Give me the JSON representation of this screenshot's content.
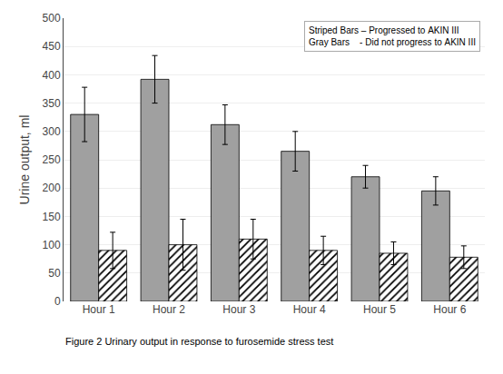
{
  "chart_data": {
    "type": "bar",
    "ylabel": "Urine output, ml",
    "categories": [
      "Hour 1",
      "Hour 2",
      "Hour 3",
      "Hour 4",
      "Hour 5",
      "Hour 6"
    ],
    "series": [
      {
        "color": "#a0a0a0",
        "values": [
          330,
          392,
          312,
          265,
          220,
          195
        ],
        "errors": [
          48,
          42,
          35,
          35,
          20,
          25
        ]
      },
      {
        "color": "#ffffff",
        "marker": "hatch",
        "values": [
          90,
          100,
          110,
          90,
          85,
          78
        ],
        "errors": [
          32,
          45,
          35,
          25,
          20,
          20
        ]
      }
    ],
    "ylim": [
      0,
      500
    ],
    "yticks": [
      0,
      50,
      100,
      150,
      200,
      250,
      300,
      350,
      400,
      450,
      500
    ],
    "grid": true,
    "annotations": [
      "Striped Bars – Progressed to AKIN III",
      "Gray Bars    - Did not progress to AKIN III"
    ],
    "caption": "Figure 2 Urinary output in response to furosemide stress test"
  }
}
